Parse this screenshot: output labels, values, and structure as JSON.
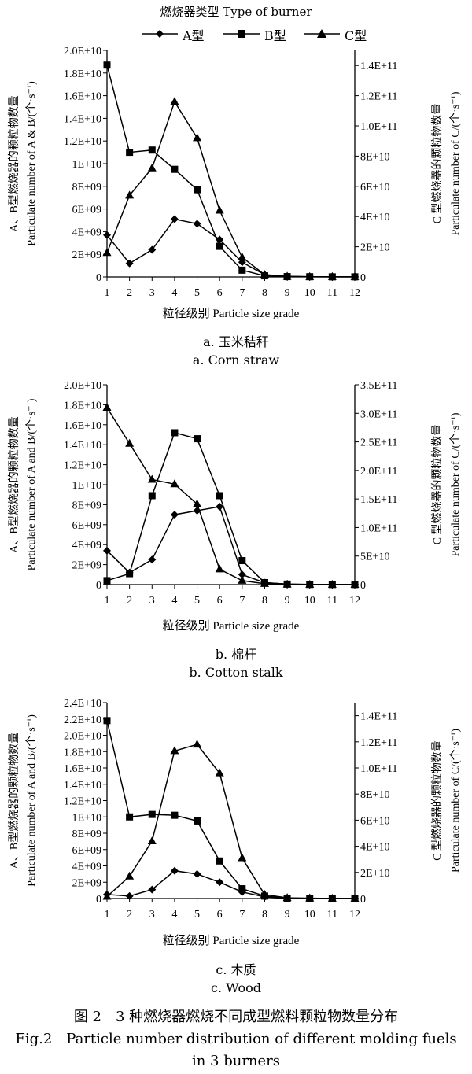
{
  "legend": {
    "title": "燃烧器类型 Type of burner",
    "items": [
      {
        "label": "A型",
        "marker": "diamond"
      },
      {
        "label": "B型",
        "marker": "square"
      },
      {
        "label": "C型",
        "marker": "triangle"
      }
    ]
  },
  "chart_data": [
    {
      "type": "line",
      "x": [
        1,
        2,
        3,
        4,
        5,
        6,
        7,
        8,
        9,
        10,
        11,
        12
      ],
      "xlabel": "粒径级别 Particle size grade",
      "ylabel_left": [
        "A、B型燃烧器的颗粒物数量",
        "Particulate number of A & B/(个·s⁻¹)"
      ],
      "ylabel_right": [
        "C 型燃烧器的颗粒物数量",
        "Particulate number of C/(个·s⁻¹)"
      ],
      "ylim_left": [
        0,
        20000000000
      ],
      "yticks_left": [
        "0",
        "2E+09",
        "4E+09",
        "6E+09",
        "8E+09",
        "1E+10",
        "1.2E+10",
        "1.4E+10",
        "1.6E+10",
        "1.8E+10",
        "2.0E+10"
      ],
      "ylim_right": [
        0,
        150000000000
      ],
      "yticks_right": [
        "0",
        "2E+10",
        "4E+10",
        "6E+10",
        "8E+10",
        "1.0E+11",
        "1.2E+11",
        "1.4E+11"
      ],
      "series": [
        {
          "name": "A型",
          "axis": "left",
          "marker": "diamond",
          "values": [
            3700000000,
            1200000000,
            2400000000,
            5100000000,
            4700000000,
            3300000000,
            1300000000,
            200000000,
            50000000,
            20000000,
            10000000,
            10000000
          ]
        },
        {
          "name": "B型",
          "axis": "left",
          "marker": "square",
          "values": [
            18700000000,
            11000000000,
            11200000000,
            9500000000,
            7700000000,
            2700000000,
            600000000,
            100000000,
            30000000,
            20000000,
            10000000,
            10000000
          ]
        },
        {
          "name": "C型",
          "axis": "right",
          "marker": "triangle",
          "values": [
            16000000000,
            54000000000,
            72000000000,
            116000000000,
            92000000000,
            44000000000,
            13000000000,
            1500000000,
            300000000,
            100000000,
            100000000,
            100000000
          ]
        }
      ],
      "caption_cn": "a. 玉米秸秆",
      "caption_en": "a. Corn straw"
    },
    {
      "type": "line",
      "x": [
        1,
        2,
        3,
        4,
        5,
        6,
        7,
        8,
        9,
        10,
        11,
        12
      ],
      "xlabel": "粒径级别 Particle size grade",
      "ylabel_left": [
        "A、B型燃烧器的颗粒物数量",
        "Particulate number of A and B/(个·s⁻¹)"
      ],
      "ylabel_right": [
        "C 型燃烧器的颗粒物数量",
        "Particulate number of C/(个·s⁻¹)"
      ],
      "ylim_left": [
        0,
        20000000000
      ],
      "yticks_left": [
        "0",
        "2E+09",
        "4E+09",
        "6E+09",
        "8E+09",
        "1E+10",
        "1.2E+10",
        "1.4E+10",
        "1.6E+10",
        "1.8E+10",
        "2.0E+10"
      ],
      "ylim_right": [
        0,
        350000000000
      ],
      "yticks_right": [
        "0",
        "5E+10",
        "1.0E+11",
        "1.5E+11",
        "2.0E+11",
        "2.5E+11",
        "3.0E+11",
        "3.5E+11"
      ],
      "series": [
        {
          "name": "A型",
          "axis": "left",
          "marker": "diamond",
          "values": [
            3400000000,
            1200000000,
            2500000000,
            7000000000,
            7400000000,
            7800000000,
            1000000000,
            200000000,
            50000000,
            20000000,
            10000000,
            10000000
          ]
        },
        {
          "name": "B型",
          "axis": "left",
          "marker": "square",
          "values": [
            400000000,
            1100000000,
            8900000000,
            15200000000,
            14600000000,
            8900000000,
            2400000000,
            200000000,
            50000000,
            20000000,
            10000000,
            10000000
          ]
        },
        {
          "name": "C型",
          "axis": "right",
          "marker": "triangle",
          "values": [
            310000000000,
            247000000000,
            184000000000,
            176000000000,
            141000000000,
            27000000000,
            7000000000,
            1500000000,
            500000000,
            200000000,
            100000000,
            100000000
          ]
        }
      ],
      "caption_cn": "b. 棉杆",
      "caption_en": "b. Cotton stalk"
    },
    {
      "type": "line",
      "x": [
        1,
        2,
        3,
        4,
        5,
        6,
        7,
        8,
        9,
        10,
        11,
        12
      ],
      "xlabel": "粒径级别 Particle size grade",
      "ylabel_left": [
        "A、B型燃烧器的颗粒物数量",
        "Particulate number of A and B/(个·s⁻¹)"
      ],
      "ylabel_right": [
        "C 型燃烧器的颗粒物数量",
        "Particulate number of C/(个·s⁻¹)"
      ],
      "ylim_left": [
        0,
        24000000000
      ],
      "yticks_left": [
        "0",
        "2E+09",
        "4E+09",
        "6E+09",
        "8E+09",
        "1E+10",
        "1.2E+10",
        "1.4E+10",
        "1.6E+10",
        "1.8E+10",
        "2.0E+10",
        "2.2E+10",
        "2.4E+10"
      ],
      "ylim_right": [
        0,
        150000000000
      ],
      "yticks_right": [
        "0",
        "2E+10",
        "4E+10",
        "6E+10",
        "8E+10",
        "1.0E+11",
        "1.2E+11",
        "1.4E+11"
      ],
      "series": [
        {
          "name": "A型",
          "axis": "left",
          "marker": "diamond",
          "values": [
            500000000,
            300000000,
            1100000000,
            3400000000,
            3000000000,
            2000000000,
            800000000,
            200000000,
            50000000,
            20000000,
            10000000,
            10000000
          ]
        },
        {
          "name": "B型",
          "axis": "left",
          "marker": "square",
          "values": [
            21800000000,
            10000000000,
            10300000000,
            10200000000,
            9500000000,
            4600000000,
            1200000000,
            300000000,
            50000000,
            20000000,
            10000000,
            10000000
          ]
        },
        {
          "name": "C型",
          "axis": "right",
          "marker": "triangle",
          "values": [
            1500000000,
            17000000000,
            44000000000,
            113000000000,
            118000000000,
            96000000000,
            31000000000,
            3000000000,
            500000000,
            200000000,
            100000000,
            100000000
          ]
        }
      ],
      "caption_cn": "c. 木质",
      "caption_en": "c. Wood"
    }
  ],
  "figure": {
    "caption_cn": "图 2　3 种燃烧器燃烧不同成型燃料颗粒物数量分布",
    "caption_en_line1": "Fig.2　Particle number distribution of different molding fuels",
    "caption_en_line2": "in 3 burners"
  }
}
